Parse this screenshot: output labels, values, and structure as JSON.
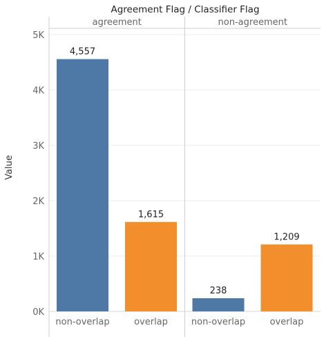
{
  "chart_data": {
    "type": "bar",
    "title": "Agreement Flag / Classifier Flag",
    "ylabel": "Value",
    "ylim": [
      0,
      5000
    ],
    "y_ticks": [
      {
        "value": 0,
        "label": "0K"
      },
      {
        "value": 1000,
        "label": "1K"
      },
      {
        "value": 2000,
        "label": "2K"
      },
      {
        "value": 3000,
        "label": "3K"
      },
      {
        "value": 4000,
        "label": "4K"
      },
      {
        "value": 5000,
        "label": "5K"
      }
    ],
    "grid": true,
    "panels": [
      {
        "header": "agreement",
        "bars": [
          {
            "category": "non-overlap",
            "value": 4557,
            "label": "4,557"
          },
          {
            "category": "overlap",
            "value": 1615,
            "label": "1,615"
          }
        ]
      },
      {
        "header": "non-agreement",
        "bars": [
          {
            "category": "non-overlap",
            "value": 238,
            "label": "238"
          },
          {
            "category": "overlap",
            "value": 1209,
            "label": "1,209"
          }
        ]
      }
    ],
    "colors": {
      "non-overlap": "#4e79a7",
      "overlap": "#f28e2b"
    }
  }
}
